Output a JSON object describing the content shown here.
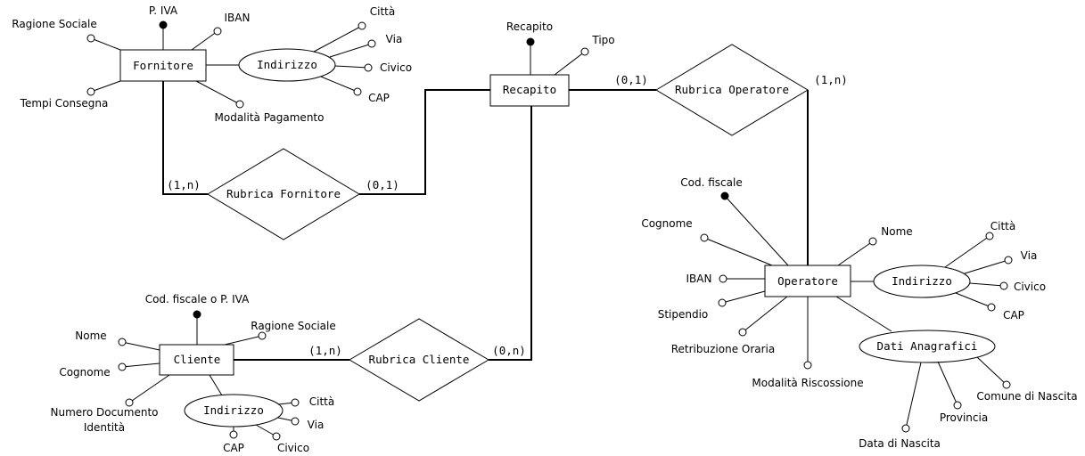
{
  "entities": {
    "fornitore": "Fornitore",
    "recapito": "Recapito",
    "cliente": "Cliente",
    "operatore": "Operatore"
  },
  "relationships": {
    "rubrica_fornitore": "Rubrica Fornitore",
    "rubrica_operatore": "Rubrica Operatore",
    "rubrica_cliente": "Rubrica Cliente"
  },
  "composites": {
    "fornitore_indirizzo": "Indirizzo",
    "cliente_indirizzo": "Indirizzo",
    "operatore_indirizzo": "Indirizzo",
    "dati_anagrafici": "Dati Anagrafici"
  },
  "attributes": {
    "fornitore": {
      "piva": "P. IVA",
      "ragione_sociale": "Ragione Sociale",
      "iban": "IBAN",
      "tempi_consegna": "Tempi Consegna",
      "modalita_pagamento": "Modalità Pagamento"
    },
    "fornitore_indirizzo": {
      "citta": "Città",
      "via": "Via",
      "civico": "Civico",
      "cap": "CAP"
    },
    "recapito": {
      "recapito": "Recapito",
      "tipo": "Tipo"
    },
    "cliente": {
      "cf_piva": "Cod. fiscale o P. IVA",
      "ragione_sociale": "Ragione Sociale",
      "nome": "Nome",
      "cognome": "Cognome",
      "numero_documento_1": "Numero Documento",
      "numero_documento_2": "Identità"
    },
    "cliente_indirizzo": {
      "citta": "Città",
      "via": "Via",
      "civico": "Civico",
      "cap": "CAP"
    },
    "operatore": {
      "cod_fiscale": "Cod. fiscale",
      "cognome": "Cognome",
      "nome": "Nome",
      "iban": "IBAN",
      "stipendio": "Stipendio",
      "retribuzione_oraria": "Retribuzione Oraria",
      "modalita_riscossione": "Modalità Riscossione"
    },
    "operatore_indirizzo": {
      "citta": "Città",
      "via": "Via",
      "civico": "Civico",
      "cap": "CAP"
    },
    "dati_anagrafici": {
      "data_nascita": "Data di Nascita",
      "provincia": "Provincia",
      "comune_nascita": "Comune di Nascita"
    }
  },
  "cardinalities": {
    "fornitore_rf": "(1,n)",
    "recapito_rf": "(0,1)",
    "recapito_ro": "(0,1)",
    "operatore_ro": "(1,n)",
    "cliente_rc": "(1,n)",
    "recapito_rc": "(0,n)"
  }
}
